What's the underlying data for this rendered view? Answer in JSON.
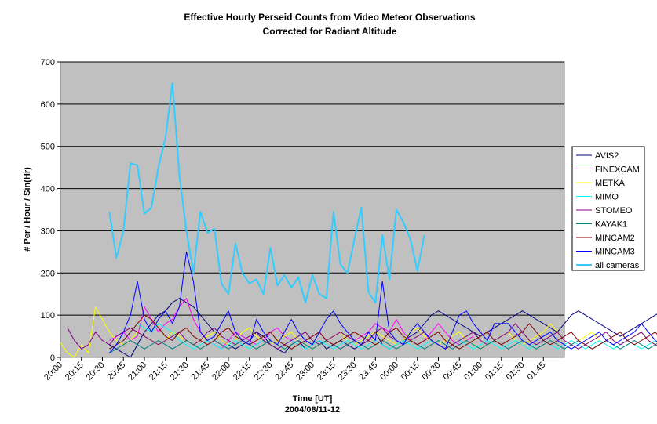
{
  "chart_data": {
    "type": "line",
    "title": "Effective Hourly Perseid Counts from Video Meteor Observations",
    "subtitle": "Corrected for Radiant Altitude",
    "xlabel": "Time [UT]",
    "xlabel2": "2004/08/11-12",
    "ylabel": "# Per / Hour / Sin(Hr)",
    "ylim": [
      0,
      700
    ],
    "yticks": [
      "0",
      "100",
      "200",
      "300",
      "400",
      "500",
      "600",
      "700"
    ],
    "x_tick_labels": [
      "20:00",
      "20:15",
      "20:30",
      "20:45",
      "21:00",
      "21:15",
      "21:30",
      "21:45",
      "22:00",
      "22:15",
      "22:30",
      "22:45",
      "23:00",
      "23:15",
      "23:30",
      "23:45",
      "00:00",
      "00:15",
      "00:30",
      "00:45",
      "01:00",
      "01:15",
      "01:30",
      "01:45"
    ],
    "x_step_minutes": 5,
    "grid": true,
    "legend_position": "right",
    "series": [
      {
        "name": "AVIS2",
        "color": "#000080",
        "width": 1,
        "values": [
          null,
          null,
          null,
          null,
          null,
          null,
          null,
          30,
          20,
          10,
          0,
          30,
          60,
          80,
          100,
          110,
          130,
          140,
          130,
          120,
          100,
          80,
          60,
          40,
          30,
          20,
          30,
          40,
          60,
          50,
          30,
          20,
          10,
          30,
          40,
          20,
          30,
          40,
          20,
          30,
          40,
          30,
          20,
          30,
          40,
          60,
          30,
          20,
          30,
          40,
          50,
          60,
          80,
          100,
          110,
          100,
          90,
          80,
          70,
          60,
          50,
          60,
          70,
          80,
          90,
          100,
          110,
          100,
          90,
          80,
          70,
          60,
          80,
          100,
          110,
          100,
          90,
          80,
          70,
          60,
          50,
          60,
          70,
          80,
          90,
          100,
          110,
          100,
          90,
          80
        ]
      },
      {
        "name": "FINEXCAM",
        "color": "#ff00ff",
        "width": 1,
        "values": [
          null,
          null,
          null,
          null,
          null,
          null,
          null,
          40,
          50,
          60,
          40,
          50,
          120,
          90,
          60,
          80,
          90,
          120,
          140,
          90,
          60,
          40,
          30,
          20,
          40,
          60,
          50,
          40,
          30,
          40,
          60,
          70,
          50,
          40,
          30,
          40,
          50,
          60,
          40,
          30,
          20,
          30,
          40,
          50,
          60,
          80,
          70,
          60,
          90,
          60,
          40,
          30,
          40,
          60,
          80,
          60,
          40,
          30,
          40,
          50
        ]
      },
      {
        "name": "METKA",
        "color": "#ffff00",
        "width": 1,
        "values": [
          35,
          10,
          0,
          30,
          10,
          120,
          90,
          60,
          40,
          30,
          40,
          60,
          50,
          40,
          30,
          40,
          60,
          50,
          40,
          30,
          40,
          50,
          60,
          40,
          30,
          40,
          60,
          70,
          50,
          40,
          30,
          40,
          50,
          60,
          40,
          30,
          20,
          30,
          40,
          50,
          60,
          40,
          30,
          40,
          50,
          60,
          50,
          40,
          30,
          40,
          60,
          70,
          50,
          40,
          30,
          40,
          50,
          60,
          40,
          30,
          20,
          30,
          40,
          50,
          60,
          40,
          30,
          40,
          50,
          60,
          80,
          60,
          40,
          30,
          40,
          50,
          60,
          40,
          30,
          20,
          30,
          40,
          50,
          60,
          40,
          30,
          40,
          50,
          60,
          40
        ]
      },
      {
        "name": "MIMO",
        "color": "#00ffff",
        "width": 1,
        "values": [
          null,
          null,
          null,
          null,
          null,
          null,
          null,
          20,
          30,
          40,
          60,
          80,
          70,
          60,
          80,
          70,
          60,
          40,
          30,
          20,
          30,
          40,
          30,
          20,
          30,
          40,
          30,
          20,
          30,
          40,
          30,
          20,
          30,
          40,
          30,
          20,
          30,
          40,
          30,
          20,
          30,
          40,
          30,
          20,
          30,
          40,
          30,
          20,
          30,
          40,
          30,
          20,
          30,
          40,
          30,
          20,
          30,
          40,
          30,
          20,
          30,
          40,
          30,
          20,
          30,
          40,
          30,
          20,
          30,
          40,
          30,
          20,
          30,
          40,
          30,
          20,
          30,
          40,
          30,
          20,
          30,
          40,
          30,
          20,
          30,
          40,
          30,
          20,
          30,
          40
        ]
      },
      {
        "name": "STOMEO",
        "color": "#800080",
        "width": 1,
        "values": [
          null,
          70,
          40,
          20,
          30,
          60,
          40,
          30,
          50,
          60,
          70,
          60,
          50,
          40,
          30,
          40,
          50,
          60,
          40,
          30,
          40,
          60,
          70,
          50,
          40,
          30,
          40,
          50,
          60,
          40,
          30,
          20,
          30,
          40,
          50,
          60,
          40,
          30,
          40,
          50,
          60,
          50,
          40,
          30,
          40,
          60,
          70,
          50,
          40,
          30,
          40,
          50,
          60,
          40,
          30,
          20,
          30,
          40,
          50,
          60,
          40,
          30,
          40,
          50,
          60,
          80,
          60,
          40,
          30,
          40,
          50,
          60,
          40,
          30,
          20,
          30,
          40,
          50,
          60,
          40,
          30,
          40,
          50,
          60,
          40,
          30,
          20,
          30,
          40,
          80
        ]
      },
      {
        "name": "KAYAK1",
        "color": "#008080",
        "width": 1,
        "values": [
          null,
          null,
          null,
          null,
          null,
          null,
          null,
          10,
          20,
          30,
          40,
          30,
          20,
          30,
          40,
          30,
          20,
          30,
          40,
          30,
          20,
          30,
          40,
          30,
          20,
          30,
          40,
          30,
          20,
          30,
          40,
          30,
          20,
          30,
          40,
          30,
          20,
          30,
          40,
          30,
          20,
          30,
          40,
          30,
          20,
          30,
          40,
          30,
          20,
          30,
          40,
          30,
          20,
          30,
          40,
          30,
          20,
          30,
          40,
          30,
          20,
          30,
          40,
          30,
          20,
          30,
          40,
          30,
          20,
          30,
          40,
          30,
          20,
          30,
          40,
          30,
          20,
          30,
          40,
          30,
          20,
          30,
          40,
          30,
          20,
          30,
          40,
          30,
          20,
          30
        ]
      },
      {
        "name": "MINCAM2",
        "color": "#800000",
        "width": 1,
        "values": [
          null,
          null,
          null,
          null,
          null,
          null,
          null,
          20,
          30,
          40,
          60,
          80,
          100,
          90,
          70,
          50,
          40,
          60,
          70,
          50,
          40,
          30,
          40,
          60,
          70,
          50,
          40,
          30,
          40,
          50,
          60,
          40,
          30,
          20,
          30,
          40,
          50,
          60,
          40,
          30,
          40,
          50,
          60,
          50,
          40,
          30,
          40,
          60,
          70,
          50,
          40,
          30,
          40,
          50,
          60,
          40,
          30,
          20,
          30,
          40,
          50,
          60,
          40,
          30,
          40,
          50,
          60,
          80,
          60,
          40,
          30,
          40,
          50,
          60,
          40,
          30,
          20,
          30,
          40,
          50,
          60,
          40,
          30,
          40,
          50,
          60,
          40,
          30,
          20,
          30
        ]
      },
      {
        "name": "MINCAM3",
        "color": "#0000ff",
        "width": 1,
        "values": [
          null,
          null,
          null,
          null,
          null,
          null,
          null,
          10,
          30,
          60,
          100,
          180,
          90,
          60,
          90,
          110,
          80,
          120,
          250,
          180,
          60,
          40,
          50,
          80,
          110,
          60,
          40,
          30,
          90,
          60,
          40,
          30,
          60,
          90,
          60,
          40,
          30,
          60,
          90,
          110,
          80,
          60,
          40,
          30,
          60,
          40,
          180,
          60,
          40,
          30,
          60,
          80,
          60,
          40,
          30,
          20,
          60,
          100,
          110,
          80,
          60,
          40,
          80,
          80,
          80,
          60,
          40,
          30,
          40,
          50,
          60,
          40,
          30,
          20,
          30,
          40,
          50,
          60,
          40,
          30,
          40,
          50,
          60,
          80,
          60,
          40,
          30,
          40,
          110,
          120
        ]
      },
      {
        "name": "all cameras",
        "color": "#33ccff",
        "width": 2,
        "values": [
          null,
          null,
          null,
          null,
          null,
          null,
          null,
          345,
          235,
          300,
          460,
          455,
          340,
          355,
          450,
          520,
          650,
          430,
          300,
          200,
          345,
          295,
          305,
          175,
          150,
          270,
          200,
          175,
          185,
          150,
          260,
          170,
          195,
          165,
          190,
          130,
          195,
          150,
          140,
          345,
          220,
          200,
          280,
          355,
          155,
          130,
          290,
          185,
          350,
          320,
          280,
          205,
          290
        ]
      }
    ]
  }
}
